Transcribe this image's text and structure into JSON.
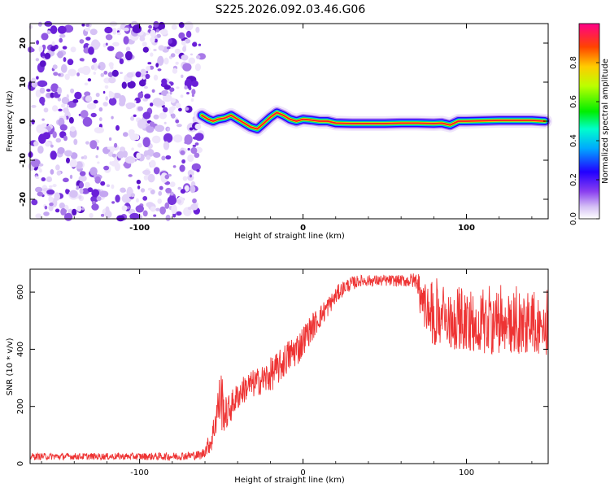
{
  "title": "S225.2026.092.03.46.G06",
  "colors": {
    "snr_line": "#ee3333",
    "purple_dark": "#6a1fd8",
    "purple_light": "#d6c2f5"
  },
  "chart_data": [
    {
      "type": "heatmap",
      "title": "S225.2026.092.03.46.G06",
      "xlabel": "Height of straight line (km)",
      "ylabel": "Frequency (Hz)",
      "xlim": [
        -167,
        150
      ],
      "ylim": [
        -25,
        25
      ],
      "xticks": [
        -100,
        0,
        100
      ],
      "xtick_labels": [
        "-100",
        "0",
        "100"
      ],
      "yticks": [
        -20,
        -10,
        0,
        10,
        20
      ],
      "ytick_labels": [
        "-20",
        "-10",
        "0",
        "10",
        "20"
      ],
      "noise_region_x": [
        -167,
        -62
      ],
      "ridge": {
        "x": [
          -62,
          -58,
          -55,
          -52,
          -48,
          -44,
          -40,
          -36,
          -32,
          -28,
          -24,
          -20,
          -16,
          -12,
          -8,
          -4,
          0,
          5,
          10,
          15,
          20,
          30,
          40,
          50,
          60,
          70,
          80,
          85,
          90,
          95,
          100,
          110,
          120,
          130,
          140,
          148
        ],
        "y": [
          1.5,
          0.5,
          0.0,
          0.5,
          0.8,
          1.5,
          0.5,
          -0.5,
          -1.5,
          -2.0,
          -0.5,
          1.0,
          2.2,
          1.5,
          0.5,
          0.0,
          0.5,
          0.3,
          0.0,
          0.0,
          -0.5,
          -0.6,
          -0.6,
          -0.6,
          -0.5,
          -0.5,
          -0.6,
          -0.5,
          -1.0,
          0.0,
          0.0,
          0.1,
          0.2,
          0.2,
          0.2,
          0.0
        ]
      },
      "colorbar": {
        "label": "Normalized spectral amplitude",
        "ticks": [
          0.0,
          0.2,
          0.4,
          0.6,
          0.8
        ],
        "tick_labels": [
          "0.0",
          "0.2",
          "0.4",
          "0.6",
          "0.8"
        ],
        "range": [
          0,
          1
        ]
      }
    },
    {
      "type": "line",
      "xlabel": "Height of straight line (km)",
      "ylabel": "SNR (10 * v/v)",
      "xlim": [
        -167,
        150
      ],
      "ylim": [
        0,
        680
      ],
      "xticks": [
        -100,
        0,
        100
      ],
      "xtick_labels": [
        "-100",
        "0",
        "100"
      ],
      "yticks": [
        0,
        200,
        400,
        600
      ],
      "ytick_labels": [
        "0",
        "200",
        "400",
        "600"
      ],
      "envelope": {
        "x": [
          -167,
          -140,
          -110,
          -80,
          -62,
          -56,
          -52,
          -50,
          -48,
          -46,
          -42,
          -38,
          -34,
          -30,
          -26,
          -22,
          -18,
          -14,
          -10,
          -6,
          -2,
          2,
          6,
          10,
          14,
          18,
          22,
          26,
          30,
          35,
          40,
          50,
          60,
          70,
          72,
          74,
          76,
          80,
          90,
          100,
          110,
          120,
          130,
          140,
          150
        ],
        "mean": [
          25,
          25,
          25,
          25,
          30,
          80,
          200,
          230,
          170,
          180,
          220,
          250,
          270,
          280,
          290,
          300,
          320,
          340,
          370,
          390,
          410,
          450,
          480,
          510,
          540,
          570,
          600,
          620,
          630,
          640,
          640,
          640,
          640,
          640,
          630,
          630,
          600,
          590,
          580,
          560,
          560,
          560,
          560,
          560,
          555
        ],
        "noise": [
          12,
          12,
          12,
          14,
          16,
          40,
          80,
          120,
          60,
          60,
          50,
          50,
          50,
          50,
          50,
          60,
          60,
          60,
          60,
          60,
          60,
          50,
          50,
          40,
          40,
          30,
          30,
          25,
          25,
          20,
          20,
          20,
          20,
          30,
          80,
          90,
          100,
          110,
          110,
          110,
          110,
          110,
          110,
          110,
          110
        ]
      },
      "series": [
        {
          "name": "SNR",
          "points": 1400
        }
      ]
    }
  ]
}
